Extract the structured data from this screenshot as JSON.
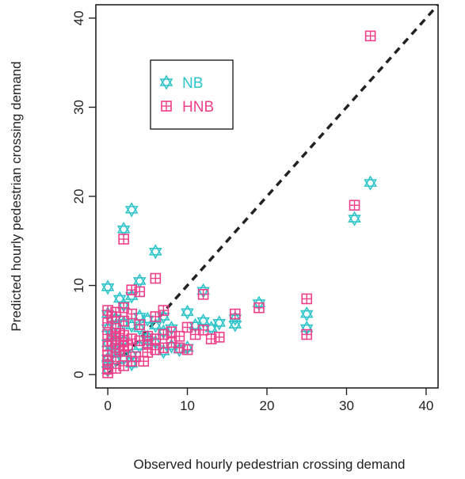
{
  "chart_data": {
    "type": "scatter",
    "xlabel": "Observed hourly pedestrian crossing demand",
    "ylabel": "Predicted hourly pedestrian crossing demand",
    "xlim": [
      -1.5,
      41.5
    ],
    "ylim": [
      -1.5,
      41.5
    ],
    "x_ticks": [
      0,
      10,
      20,
      30,
      40
    ],
    "y_ticks": [
      0,
      10,
      20,
      30,
      40
    ],
    "reference_line": {
      "style": "dashed",
      "color": "#222222",
      "from": [
        0,
        0
      ],
      "to": [
        41.5,
        41.5
      ]
    },
    "grid": false,
    "legend_position": "top-left",
    "series": [
      {
        "name": "NB",
        "color": "#2ec4c9",
        "marker": "star-of-david",
        "points": [
          [
            33,
            21.5
          ],
          [
            31,
            17.5
          ],
          [
            25,
            6.8
          ],
          [
            25,
            5.2
          ],
          [
            19,
            8.0
          ],
          [
            16,
            5.6
          ],
          [
            16,
            6.3
          ],
          [
            14,
            5.8
          ],
          [
            13,
            5.2
          ],
          [
            12,
            9.4
          ],
          [
            12,
            6.0
          ],
          [
            11,
            5.5
          ],
          [
            10,
            7.0
          ],
          [
            10,
            3.0
          ],
          [
            9,
            2.8
          ],
          [
            8,
            5.2
          ],
          [
            7,
            4.8
          ],
          [
            7,
            2.6
          ],
          [
            7,
            6.5
          ],
          [
            6,
            13.8
          ],
          [
            6,
            5.5
          ],
          [
            5,
            6.2
          ],
          [
            5,
            3.8
          ],
          [
            5,
            4.2
          ],
          [
            4,
            10.5
          ],
          [
            4,
            5.2
          ],
          [
            4,
            3.2
          ],
          [
            4,
            6.5
          ],
          [
            3,
            18.5
          ],
          [
            3,
            8.8
          ],
          [
            3,
            2.2
          ],
          [
            3,
            1.2
          ],
          [
            3,
            5.5
          ],
          [
            2,
            16.3
          ],
          [
            2,
            7.8
          ],
          [
            2,
            3.8
          ],
          [
            2,
            5.8
          ],
          [
            2,
            1.8
          ],
          [
            1.5,
            8.5
          ],
          [
            1,
            5.5
          ],
          [
            1,
            3.8
          ],
          [
            1,
            1.6
          ],
          [
            1,
            2.8
          ],
          [
            1,
            6.3
          ],
          [
            0,
            9.8
          ],
          [
            0,
            6.8
          ],
          [
            0,
            5.2
          ],
          [
            0,
            3.5
          ],
          [
            0,
            1.8
          ],
          [
            0,
            1.2
          ],
          [
            0,
            0.5
          ],
          [
            0.5,
            4.2
          ],
          [
            0.5,
            2.5
          ],
          [
            6,
            3.6
          ],
          [
            8,
            3.2
          ]
        ]
      },
      {
        "name": "HNB",
        "color": "#ef3f8a",
        "marker": "boxed-cross",
        "points": [
          [
            33,
            38.0
          ],
          [
            31,
            19.0
          ],
          [
            25,
            8.5
          ],
          [
            25,
            4.5
          ],
          [
            19,
            7.5
          ],
          [
            16,
            6.8
          ],
          [
            14,
            4.2
          ],
          [
            13,
            4.0
          ],
          [
            12,
            9.0
          ],
          [
            12,
            5.0
          ],
          [
            11,
            4.5
          ],
          [
            10,
            5.3
          ],
          [
            10,
            2.8
          ],
          [
            9,
            4.3
          ],
          [
            8,
            4.8
          ],
          [
            8,
            3.6
          ],
          [
            7,
            7.2
          ],
          [
            7,
            3.0
          ],
          [
            6,
            10.8
          ],
          [
            6,
            6.5
          ],
          [
            6,
            4.0
          ],
          [
            5,
            4.3
          ],
          [
            5,
            2.5
          ],
          [
            4,
            9.3
          ],
          [
            4,
            5.6
          ],
          [
            4,
            3.8
          ],
          [
            3,
            9.5
          ],
          [
            3,
            6.8
          ],
          [
            3,
            4.0
          ],
          [
            3,
            1.5
          ],
          [
            2,
            15.2
          ],
          [
            2,
            7.5
          ],
          [
            2,
            6.0
          ],
          [
            2,
            4.4
          ],
          [
            2,
            2.6
          ],
          [
            2,
            1.0
          ],
          [
            1,
            7.0
          ],
          [
            1,
            5.2
          ],
          [
            1,
            3.5
          ],
          [
            1,
            2.0
          ],
          [
            1,
            0.7
          ],
          [
            0,
            7.2
          ],
          [
            0,
            5.8
          ],
          [
            0,
            4.5
          ],
          [
            0,
            3.2
          ],
          [
            0,
            2.2
          ],
          [
            0,
            1.5
          ],
          [
            0,
            0.6
          ],
          [
            0.5,
            6.5
          ],
          [
            0.5,
            3.8
          ],
          [
            1.5,
            2.8
          ],
          [
            1.5,
            4.6
          ],
          [
            2.5,
            3.3
          ],
          [
            3.5,
            2.0
          ],
          [
            4.5,
            1.5
          ],
          [
            5,
            3.4
          ],
          [
            6,
            2.8
          ],
          [
            7,
            4.5
          ],
          [
            9,
            3.0
          ],
          [
            1,
            4.3
          ],
          [
            2,
            3.2
          ],
          [
            0,
            0.2
          ]
        ]
      }
    ]
  }
}
